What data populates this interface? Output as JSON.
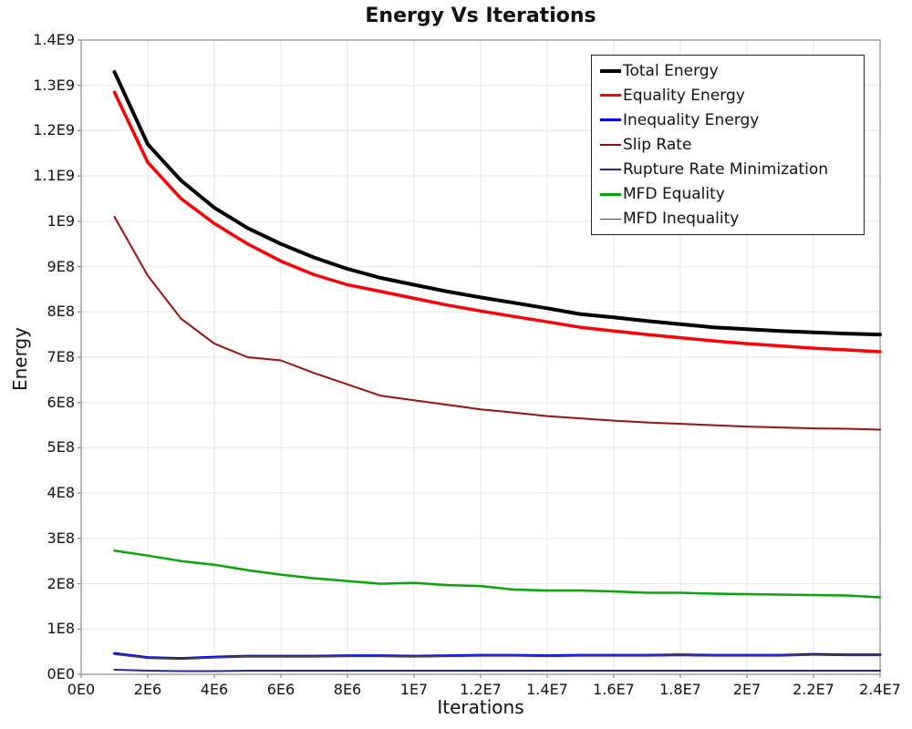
{
  "chart_data": {
    "type": "line",
    "title": "Energy Vs Iterations",
    "xlabel": "Iterations",
    "ylabel": "Energy",
    "xlim": [
      0,
      24000000
    ],
    "ylim": [
      0,
      1400000000
    ],
    "grid": true,
    "legend_position": "top-right-inside",
    "x_ticks": [
      {
        "label": "0E0",
        "value": 0
      },
      {
        "label": "2E6",
        "value": 2000000
      },
      {
        "label": "4E6",
        "value": 4000000
      },
      {
        "label": "6E6",
        "value": 6000000
      },
      {
        "label": "8E6",
        "value": 8000000
      },
      {
        "label": "1E7",
        "value": 10000000
      },
      {
        "label": "1.2E7",
        "value": 12000000
      },
      {
        "label": "1.4E7",
        "value": 14000000
      },
      {
        "label": "1.6E7",
        "value": 16000000
      },
      {
        "label": "1.8E7",
        "value": 18000000
      },
      {
        "label": "2E7",
        "value": 20000000
      },
      {
        "label": "2.2E7",
        "value": 22000000
      },
      {
        "label": "2.4E7",
        "value": 24000000
      }
    ],
    "y_ticks": [
      {
        "label": "0E0",
        "value": 0
      },
      {
        "label": "1E8",
        "value": 100000000
      },
      {
        "label": "2E8",
        "value": 200000000
      },
      {
        "label": "3E8",
        "value": 300000000
      },
      {
        "label": "4E8",
        "value": 400000000
      },
      {
        "label": "5E8",
        "value": 500000000
      },
      {
        "label": "6E8",
        "value": 600000000
      },
      {
        "label": "7E8",
        "value": 700000000
      },
      {
        "label": "8E8",
        "value": 800000000
      },
      {
        "label": "9E8",
        "value": 900000000
      },
      {
        "label": "1E9",
        "value": 1000000000
      },
      {
        "label": "1.1E9",
        "value": 1100000000
      },
      {
        "label": "1.2E9",
        "value": 1200000000
      },
      {
        "label": "1.3E9",
        "value": 1300000000
      },
      {
        "label": "1.4E9",
        "value": 1400000000
      }
    ],
    "x": [
      1000000,
      2000000,
      3000000,
      4000000,
      5000000,
      6000000,
      7000000,
      8000000,
      9000000,
      10000000,
      11000000,
      12000000,
      13000000,
      14000000,
      15000000,
      16000000,
      17000000,
      18000000,
      19000000,
      20000000,
      21000000,
      22000000,
      23000000,
      24000000
    ],
    "y_value_scale": 100000000,
    "series": [
      {
        "name": "Total Energy",
        "color": "#000000",
        "width": 4,
        "values": [
          13.3,
          11.7,
          10.9,
          10.3,
          9.85,
          9.5,
          9.2,
          8.95,
          8.75,
          8.6,
          8.45,
          8.32,
          8.2,
          8.08,
          7.95,
          7.88,
          7.8,
          7.73,
          7.66,
          7.62,
          7.58,
          7.55,
          7.52,
          7.5
        ]
      },
      {
        "name": "Equality Energy",
        "color": "#ff0000",
        "width": 3.5,
        "values": [
          12.85,
          11.3,
          10.5,
          9.95,
          9.5,
          9.12,
          8.82,
          8.6,
          8.45,
          8.3,
          8.15,
          8.02,
          7.9,
          7.78,
          7.66,
          7.58,
          7.5,
          7.43,
          7.36,
          7.3,
          7.25,
          7.2,
          7.16,
          7.12
        ]
      },
      {
        "name": "Inequality Energy",
        "color": "#0000ff",
        "width": 3,
        "values": [
          0.46,
          0.37,
          0.35,
          0.38,
          0.4,
          0.4,
          0.4,
          0.41,
          0.41,
          0.4,
          0.41,
          0.42,
          0.42,
          0.41,
          0.42,
          0.42,
          0.42,
          0.43,
          0.42,
          0.42,
          0.42,
          0.44,
          0.43,
          0.43
        ]
      },
      {
        "name": "Slip Rate",
        "color": "#991111",
        "width": 2,
        "values": [
          10.1,
          8.8,
          7.85,
          7.3,
          7.0,
          6.93,
          6.65,
          6.4,
          6.15,
          6.05,
          5.95,
          5.85,
          5.78,
          5.7,
          5.65,
          5.6,
          5.56,
          5.53,
          5.5,
          5.47,
          5.45,
          5.43,
          5.42,
          5.4
        ]
      },
      {
        "name": "Rupture Rate Minimization",
        "color": "#26268f",
        "width": 2,
        "values": [
          0.1,
          0.08,
          0.07,
          0.07,
          0.08,
          0.08,
          0.08,
          0.08,
          0.08,
          0.08,
          0.08,
          0.08,
          0.08,
          0.08,
          0.08,
          0.08,
          0.08,
          0.08,
          0.08,
          0.08,
          0.08,
          0.08,
          0.08,
          0.08
        ]
      },
      {
        "name": "MFD Equality",
        "color": "#00aa00",
        "width": 2.5,
        "values": [
          2.73,
          2.62,
          2.5,
          2.42,
          2.3,
          2.2,
          2.12,
          2.06,
          2.0,
          2.02,
          1.97,
          1.95,
          1.87,
          1.85,
          1.85,
          1.83,
          1.8,
          1.8,
          1.78,
          1.77,
          1.76,
          1.75,
          1.74,
          1.7
        ]
      },
      {
        "name": "MFD Inequality",
        "color": "#464646",
        "width": 1.6,
        "values": [
          0.44,
          0.36,
          0.34,
          0.37,
          0.39,
          0.39,
          0.39,
          0.4,
          0.4,
          0.39,
          0.4,
          0.41,
          0.41,
          0.4,
          0.41,
          0.41,
          0.41,
          0.42,
          0.41,
          0.41,
          0.41,
          0.43,
          0.42,
          0.42
        ]
      }
    ],
    "colors": {
      "gridline": "#e6e6e6",
      "frame": "#888888",
      "background": "#ffffff"
    }
  }
}
